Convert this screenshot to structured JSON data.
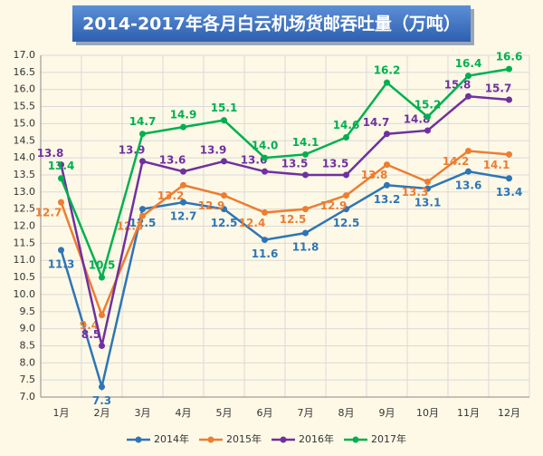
{
  "chart_data": {
    "type": "line",
    "title": "2014-2017年各月白云机场货邮吞吐量（万吨）",
    "categories": [
      "1月",
      "2月",
      "3月",
      "4月",
      "5月",
      "6月",
      "7月",
      "8月",
      "9月",
      "10月",
      "11月",
      "12月"
    ],
    "series": [
      {
        "name": "2014年",
        "color": "#2e75b6",
        "values": [
          11.3,
          7.3,
          12.5,
          12.7,
          12.5,
          11.6,
          11.8,
          12.5,
          13.2,
          13.1,
          13.6,
          13.4
        ]
      },
      {
        "name": "2015年",
        "color": "#ed7d31",
        "values": [
          12.7,
          9.4,
          12.3,
          13.2,
          12.9,
          12.4,
          12.5,
          12.9,
          13.8,
          13.3,
          14.2,
          14.1
        ]
      },
      {
        "name": "2016年",
        "color": "#7030a0",
        "values": [
          13.8,
          8.5,
          13.9,
          13.6,
          13.9,
          13.6,
          13.5,
          13.5,
          14.7,
          14.8,
          15.8,
          15.7
        ]
      },
      {
        "name": "2017年",
        "color": "#00b050",
        "values": [
          13.4,
          10.5,
          14.7,
          14.9,
          15.1,
          14.0,
          14.1,
          14.6,
          16.2,
          15.2,
          16.4,
          16.6
        ],
        "value_labels": [
          "13.4",
          "10.5",
          "14.7",
          "14.9",
          "15.1",
          "14.0",
          "14.1",
          "14.6",
          "16.2",
          "15.2",
          "16.4",
          "16.6"
        ]
      }
    ],
    "ylim": [
      7,
      17
    ],
    "yticks": [
      {
        "value": 7,
        "label": "7.0"
      },
      {
        "value": 7.5,
        "label": "7.5"
      },
      {
        "value": 8,
        "label": "8.0"
      },
      {
        "value": 8.5,
        "label": "8.5"
      },
      {
        "value": 9,
        "label": "9.0"
      },
      {
        "value": 9.5,
        "label": "9.5"
      },
      {
        "value": 10,
        "label": "10.0"
      },
      {
        "value": 10.5,
        "label": "10.5"
      },
      {
        "value": 11,
        "label": "11.0"
      },
      {
        "value": 11.5,
        "label": "11.5"
      },
      {
        "value": 12,
        "label": "12.0"
      },
      {
        "value": 12.5,
        "label": "12.5"
      },
      {
        "value": 13,
        "label": "13.0"
      },
      {
        "value": 13.5,
        "label": "13.5"
      },
      {
        "value": 14,
        "label": "14.0"
      },
      {
        "value": 14.5,
        "label": "14.5"
      },
      {
        "value": 15,
        "label": "15.0"
      },
      {
        "value": 15.5,
        "label": "15.5"
      },
      {
        "value": 16,
        "label": "16.0"
      },
      {
        "value": 16.5,
        "label": "16.5"
      },
      {
        "value": 17,
        "label": "17.0"
      }
    ],
    "grid": true,
    "legend": "bottom"
  }
}
